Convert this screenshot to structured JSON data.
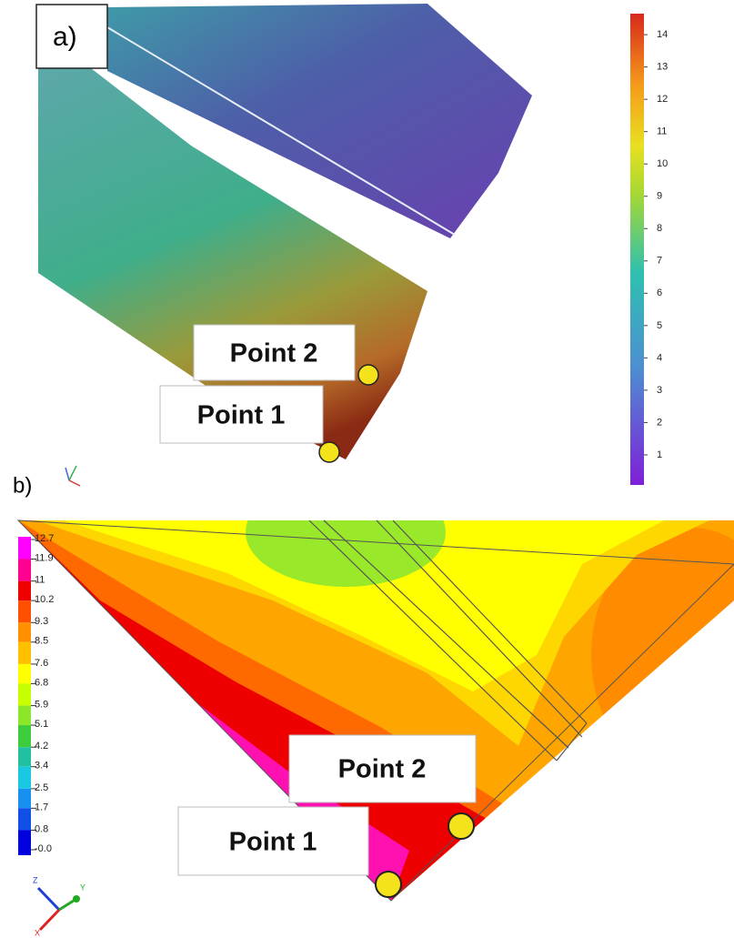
{
  "panels": [
    {
      "label": "a)",
      "colorbar": {
        "lim": [
          0.07,
          14.65
        ],
        "ticks": [
          1,
          2,
          3,
          4,
          5,
          6,
          7,
          8,
          9,
          10,
          11,
          12,
          13,
          14
        ]
      },
      "points": [
        "Point 2",
        "Point 1"
      ]
    },
    {
      "label": "b)",
      "colorbar": {
        "lim": [
          0,
          12.7
        ],
        "ticks": [
          12.7,
          11.9,
          11.0,
          10.2,
          9.3,
          8.5,
          7.6,
          6.8,
          5.9,
          5.1,
          4.2,
          3.4,
          2.5,
          1.7,
          0.8,
          {
            "value": 0,
            "label": "-0.0"
          }
        ]
      },
      "points": [
        "Point 2",
        "Point 1"
      ],
      "axes": [
        "Z",
        "Y",
        "X"
      ]
    }
  ]
}
